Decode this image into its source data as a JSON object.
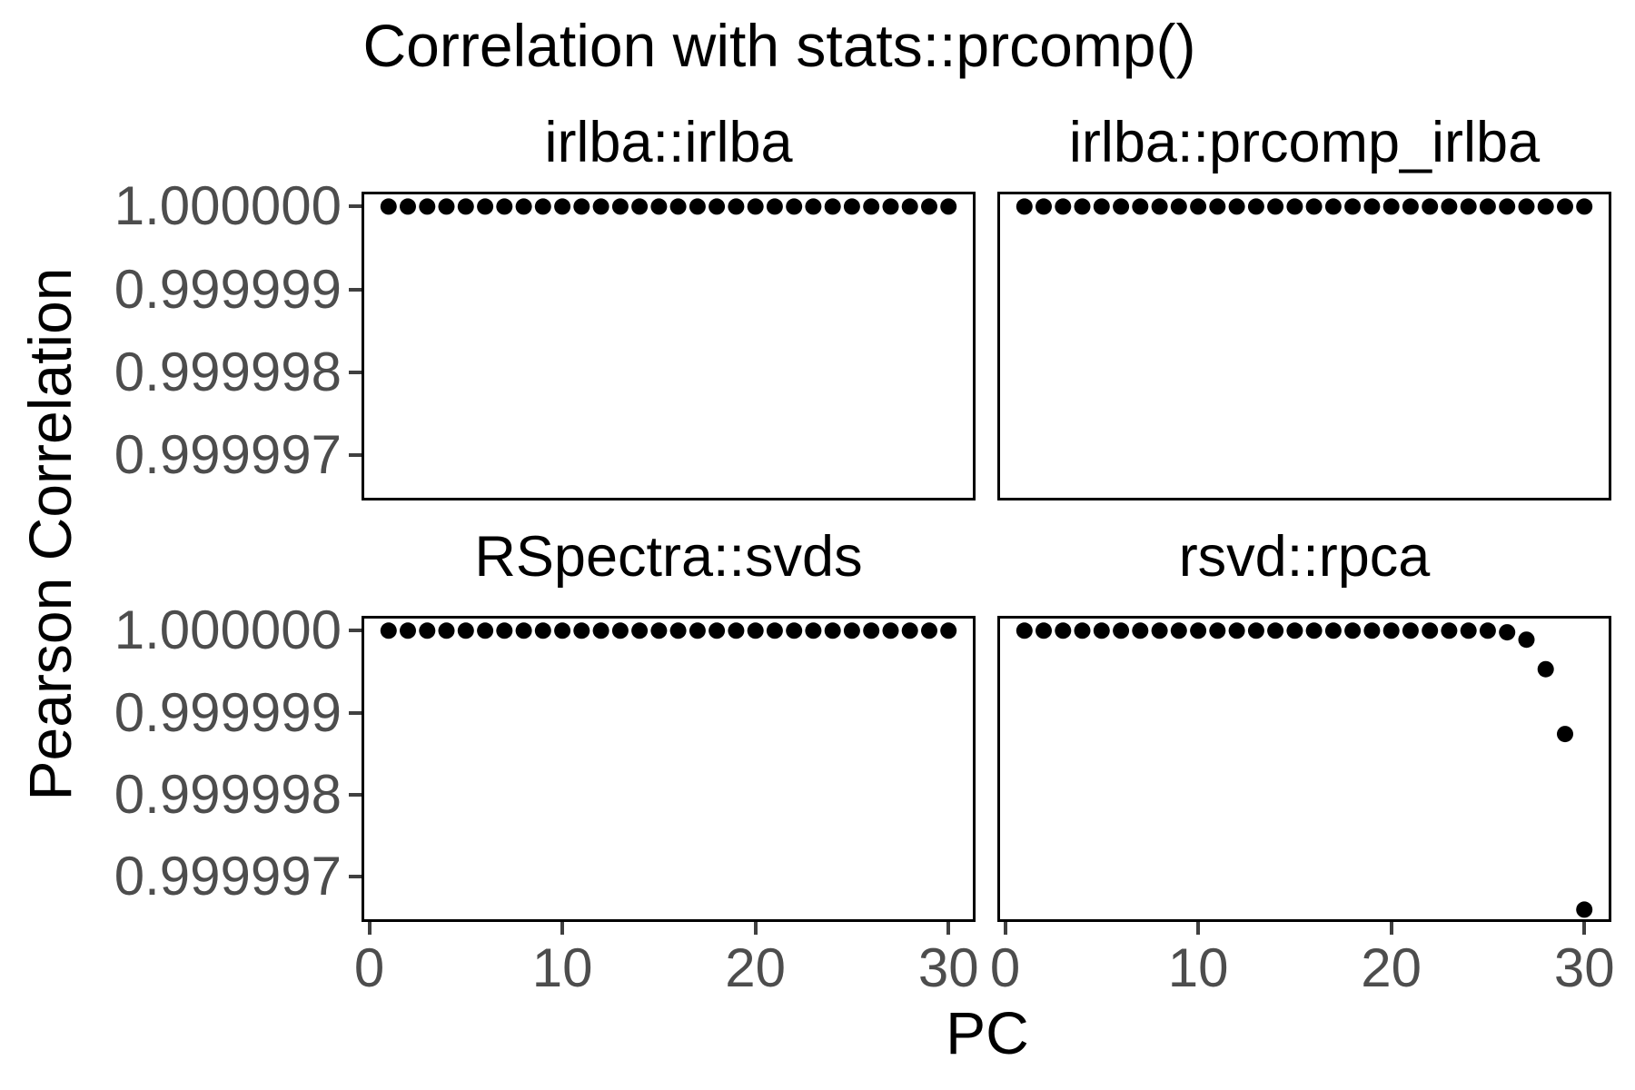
{
  "chart_data": {
    "type": "scatter",
    "title": "Correlation with stats::prcomp()",
    "xlabel": "PC",
    "ylabel": "Pearson Correlation",
    "x": [
      1,
      2,
      3,
      4,
      5,
      6,
      7,
      8,
      9,
      10,
      11,
      12,
      13,
      14,
      15,
      16,
      17,
      18,
      19,
      20,
      21,
      22,
      23,
      24,
      25,
      26,
      27,
      28,
      29,
      30
    ],
    "panels": [
      {
        "name": "irlba::irlba",
        "values": [
          1,
          1,
          1,
          1,
          1,
          1,
          1,
          1,
          1,
          1,
          1,
          1,
          1,
          1,
          1,
          1,
          1,
          1,
          1,
          1,
          1,
          1,
          1,
          1,
          1,
          1,
          1,
          1,
          1,
          1
        ]
      },
      {
        "name": "irlba::prcomp_irlba",
        "values": [
          1,
          1,
          1,
          1,
          1,
          1,
          1,
          1,
          1,
          1,
          1,
          1,
          1,
          1,
          1,
          1,
          1,
          1,
          1,
          1,
          1,
          1,
          1,
          1,
          1,
          1,
          1,
          1,
          1,
          1
        ]
      },
      {
        "name": "RSpectra::svds",
        "values": [
          1,
          1,
          1,
          1,
          1,
          1,
          1,
          1,
          1,
          1,
          1,
          1,
          1,
          1,
          1,
          1,
          1,
          1,
          1,
          1,
          1,
          1,
          1,
          1,
          1,
          1,
          1,
          1,
          1,
          1
        ]
      },
      {
        "name": "rsvd::rpca",
        "values": [
          1,
          1,
          1,
          1,
          1,
          1,
          1,
          1,
          1,
          1,
          1,
          1,
          1,
          1,
          1,
          1,
          1,
          1,
          1,
          1,
          1,
          1,
          1,
          1,
          1,
          0.99999998,
          0.99999989,
          0.99999953,
          0.99999874,
          0.9999966
        ]
      }
    ],
    "xtick_labels": [
      "0",
      "10",
      "20",
      "30"
    ],
    "xtick_values": [
      0,
      10,
      20,
      30
    ],
    "ytick_labels": [
      "1.000000",
      "0.999999",
      "0.999998",
      "0.999997"
    ],
    "ytick_values": [
      1.0,
      0.999999,
      0.999998,
      0.999997
    ],
    "xlim": [
      -0.4,
      31.4
    ],
    "ylim": [
      0.99999645,
      1.00000018
    ],
    "grid": false,
    "legend_position": "none",
    "marker": "filled-circle",
    "colors": {
      "point": "#000000",
      "axis_text": "#4d4d4d",
      "axis_ticks": "#404040",
      "panel_border": "#000000",
      "title_text": "#000000",
      "background": "#ffffff"
    }
  }
}
